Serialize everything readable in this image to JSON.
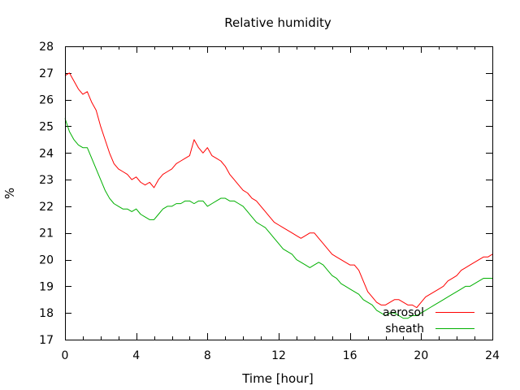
{
  "chart_data": {
    "type": "line",
    "title": "Relative humidity",
    "xlabel": "Time [hour]",
    "ylabel": "%",
    "xlim": [
      0,
      24
    ],
    "ylim": [
      17,
      28
    ],
    "xticks": [
      0,
      4,
      8,
      12,
      16,
      20,
      24
    ],
    "yticks": [
      17,
      18,
      19,
      20,
      21,
      22,
      23,
      24,
      25,
      26,
      27,
      28
    ],
    "grid": false,
    "legend_position": "bottom-right",
    "series": [
      {
        "name": "aerosol",
        "color": "#ff0000",
        "x": [
          0,
          0.25,
          0.5,
          0.75,
          1,
          1.25,
          1.5,
          1.75,
          2,
          2.25,
          2.5,
          2.75,
          3,
          3.25,
          3.5,
          3.75,
          4,
          4.25,
          4.5,
          4.75,
          5,
          5.25,
          5.5,
          5.75,
          6,
          6.25,
          6.5,
          6.75,
          7,
          7.25,
          7.5,
          7.75,
          8,
          8.25,
          8.5,
          8.75,
          9,
          9.25,
          9.5,
          9.75,
          10,
          10.25,
          10.5,
          10.75,
          11,
          11.25,
          11.5,
          11.75,
          12,
          12.25,
          12.5,
          12.75,
          13,
          13.25,
          13.5,
          13.75,
          14,
          14.25,
          14.5,
          14.75,
          15,
          15.25,
          15.5,
          15.75,
          16,
          16.25,
          16.5,
          16.75,
          17,
          17.25,
          17.5,
          17.75,
          18,
          18.25,
          18.5,
          18.75,
          19,
          19.25,
          19.5,
          19.75,
          20,
          20.25,
          20.5,
          20.75,
          21,
          21.25,
          21.5,
          21.75,
          22,
          22.25,
          22.5,
          22.75,
          23,
          23.25,
          23.5,
          23.75,
          24
        ],
        "y": [
          26.9,
          27.0,
          26.7,
          26.4,
          26.2,
          26.3,
          25.9,
          25.6,
          25.0,
          24.5,
          24.0,
          23.6,
          23.4,
          23.3,
          23.2,
          23.0,
          23.1,
          22.9,
          22.8,
          22.9,
          22.7,
          23.0,
          23.2,
          23.3,
          23.4,
          23.6,
          23.7,
          23.8,
          23.9,
          24.5,
          24.2,
          24.0,
          24.2,
          23.9,
          23.8,
          23.7,
          23.5,
          23.2,
          23.0,
          22.8,
          22.6,
          22.5,
          22.3,
          22.2,
          22.0,
          21.8,
          21.6,
          21.4,
          21.3,
          21.2,
          21.1,
          21.0,
          20.9,
          20.8,
          20.9,
          21.0,
          21.0,
          20.8,
          20.6,
          20.4,
          20.2,
          20.1,
          20.0,
          19.9,
          19.8,
          19.8,
          19.6,
          19.2,
          18.8,
          18.6,
          18.4,
          18.3,
          18.3,
          18.4,
          18.5,
          18.5,
          18.4,
          18.3,
          18.3,
          18.2,
          18.4,
          18.6,
          18.7,
          18.8,
          18.9,
          19.0,
          19.2,
          19.3,
          19.4,
          19.6,
          19.7,
          19.8,
          19.9,
          20.0,
          20.1,
          20.1,
          20.2
        ]
      },
      {
        "name": "sheath",
        "color": "#00b000",
        "x": [
          0,
          0.25,
          0.5,
          0.75,
          1,
          1.25,
          1.5,
          1.75,
          2,
          2.25,
          2.5,
          2.75,
          3,
          3.25,
          3.5,
          3.75,
          4,
          4.25,
          4.5,
          4.75,
          5,
          5.25,
          5.5,
          5.75,
          6,
          6.25,
          6.5,
          6.75,
          7,
          7.25,
          7.5,
          7.75,
          8,
          8.25,
          8.5,
          8.75,
          9,
          9.25,
          9.5,
          9.75,
          10,
          10.25,
          10.5,
          10.75,
          11,
          11.25,
          11.5,
          11.75,
          12,
          12.25,
          12.5,
          12.75,
          13,
          13.25,
          13.5,
          13.75,
          14,
          14.25,
          14.5,
          14.75,
          15,
          15.25,
          15.5,
          15.75,
          16,
          16.25,
          16.5,
          16.75,
          17,
          17.25,
          17.5,
          17.75,
          18,
          18.25,
          18.5,
          18.75,
          19,
          19.25,
          19.5,
          19.75,
          20,
          20.25,
          20.5,
          20.75,
          21,
          21.25,
          21.5,
          21.75,
          22,
          22.25,
          22.5,
          22.75,
          23,
          23.25,
          23.5,
          23.75,
          24
        ],
        "y": [
          25.3,
          24.8,
          24.5,
          24.3,
          24.2,
          24.2,
          23.8,
          23.4,
          23.0,
          22.6,
          22.3,
          22.1,
          22.0,
          21.9,
          21.9,
          21.8,
          21.9,
          21.7,
          21.6,
          21.5,
          21.5,
          21.7,
          21.9,
          22.0,
          22.0,
          22.1,
          22.1,
          22.2,
          22.2,
          22.1,
          22.2,
          22.2,
          22.0,
          22.1,
          22.2,
          22.3,
          22.3,
          22.2,
          22.2,
          22.1,
          22.0,
          21.8,
          21.6,
          21.4,
          21.3,
          21.2,
          21.0,
          20.8,
          20.6,
          20.4,
          20.3,
          20.2,
          20.0,
          19.9,
          19.8,
          19.7,
          19.8,
          19.9,
          19.8,
          19.6,
          19.4,
          19.3,
          19.1,
          19.0,
          18.9,
          18.8,
          18.7,
          18.5,
          18.4,
          18.3,
          18.1,
          18.0,
          17.9,
          18.0,
          18.0,
          17.9,
          17.8,
          17.8,
          17.9,
          17.9,
          18.0,
          18.1,
          18.2,
          18.3,
          18.4,
          18.5,
          18.6,
          18.7,
          18.8,
          18.9,
          19.0,
          19.0,
          19.1,
          19.2,
          19.3,
          19.3,
          19.3
        ]
      }
    ]
  }
}
